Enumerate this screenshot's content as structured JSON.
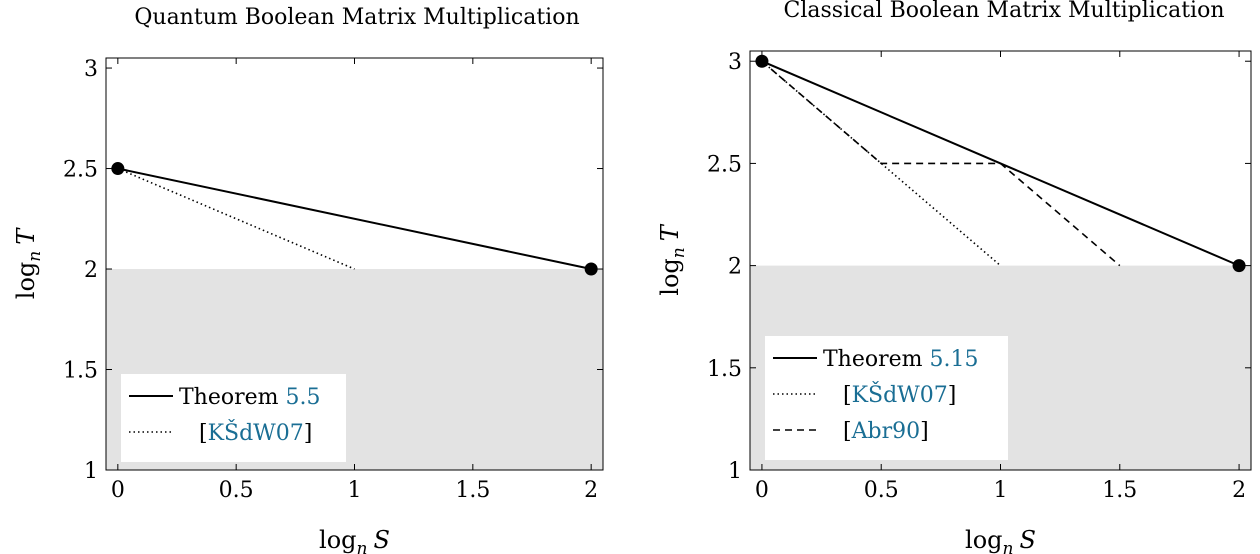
{
  "chart_data": [
    {
      "type": "line",
      "title": "Quantum Boolean Matrix Multiplication",
      "xlabel": "log_n S",
      "ylabel": "log_n T",
      "xlim": [
        -0.05,
        2.05
      ],
      "ylim": [
        1,
        3.05
      ],
      "xticks": [
        "0",
        "0.5",
        "1",
        "1.5",
        "2"
      ],
      "xtick_values": [
        0,
        0.5,
        1,
        1.5,
        2
      ],
      "yticks": [
        "1",
        "1.5",
        "2",
        "2.5",
        "3"
      ],
      "ytick_values": [
        1,
        1.5,
        2,
        2.5,
        3
      ],
      "shaded_region": {
        "y_from": 1,
        "y_to": 2,
        "color": "#e3e3e3"
      },
      "series": [
        {
          "name": "Theorem 5.5",
          "style": "solid",
          "x": [
            0,
            2
          ],
          "y": [
            2.5,
            2
          ]
        },
        {
          "name": "[KŠdW07]",
          "style": "dotted",
          "x": [
            0,
            1
          ],
          "y": [
            2.5,
            2
          ]
        }
      ],
      "points": [
        {
          "x": 0,
          "y": 2.5
        },
        {
          "x": 2,
          "y": 2
        }
      ],
      "legend": [
        {
          "prefix": "Theorem ",
          "ref": "5.5",
          "suffix": "",
          "style": "solid"
        },
        {
          "prefix": "[",
          "ref": "KŠdW07",
          "suffix": "]",
          "style": "dotted"
        }
      ],
      "legend_position": "bottom-left"
    },
    {
      "type": "line",
      "title": "Classical Boolean Matrix Multiplication",
      "xlabel": "log_n S",
      "ylabel": "log_n T",
      "xlim": [
        -0.05,
        2.05
      ],
      "ylim": [
        1,
        3.05
      ],
      "xticks": [
        "0",
        "0.5",
        "1",
        "1.5",
        "2"
      ],
      "xtick_values": [
        0,
        0.5,
        1,
        1.5,
        2
      ],
      "yticks": [
        "1",
        "1.5",
        "2",
        "2.5",
        "3"
      ],
      "ytick_values": [
        1,
        1.5,
        2,
        2.5,
        3
      ],
      "shaded_region": {
        "y_from": 1,
        "y_to": 2,
        "color": "#e3e3e3"
      },
      "series": [
        {
          "name": "Theorem 5.15",
          "style": "solid",
          "x": [
            0,
            2
          ],
          "y": [
            3,
            2
          ]
        },
        {
          "name": "[KŠdW07]",
          "style": "dotted",
          "x": [
            0,
            0.5,
            1
          ],
          "y": [
            3,
            2.5,
            2
          ]
        },
        {
          "name": "[Abr90]",
          "style": "dashed",
          "x": [
            0,
            0.5,
            1,
            1.5
          ],
          "y": [
            3,
            2.5,
            2.5,
            2
          ]
        }
      ],
      "points": [
        {
          "x": 0,
          "y": 3
        },
        {
          "x": 2,
          "y": 2
        }
      ],
      "legend": [
        {
          "prefix": "Theorem ",
          "ref": "5.15",
          "suffix": "",
          "style": "solid"
        },
        {
          "prefix": "[",
          "ref": "KŠdW07",
          "suffix": "]",
          "style": "dotted"
        },
        {
          "prefix": "[",
          "ref": "Abr90",
          "suffix": "]",
          "style": "dashed"
        }
      ],
      "legend_position": "bottom-left"
    }
  ]
}
